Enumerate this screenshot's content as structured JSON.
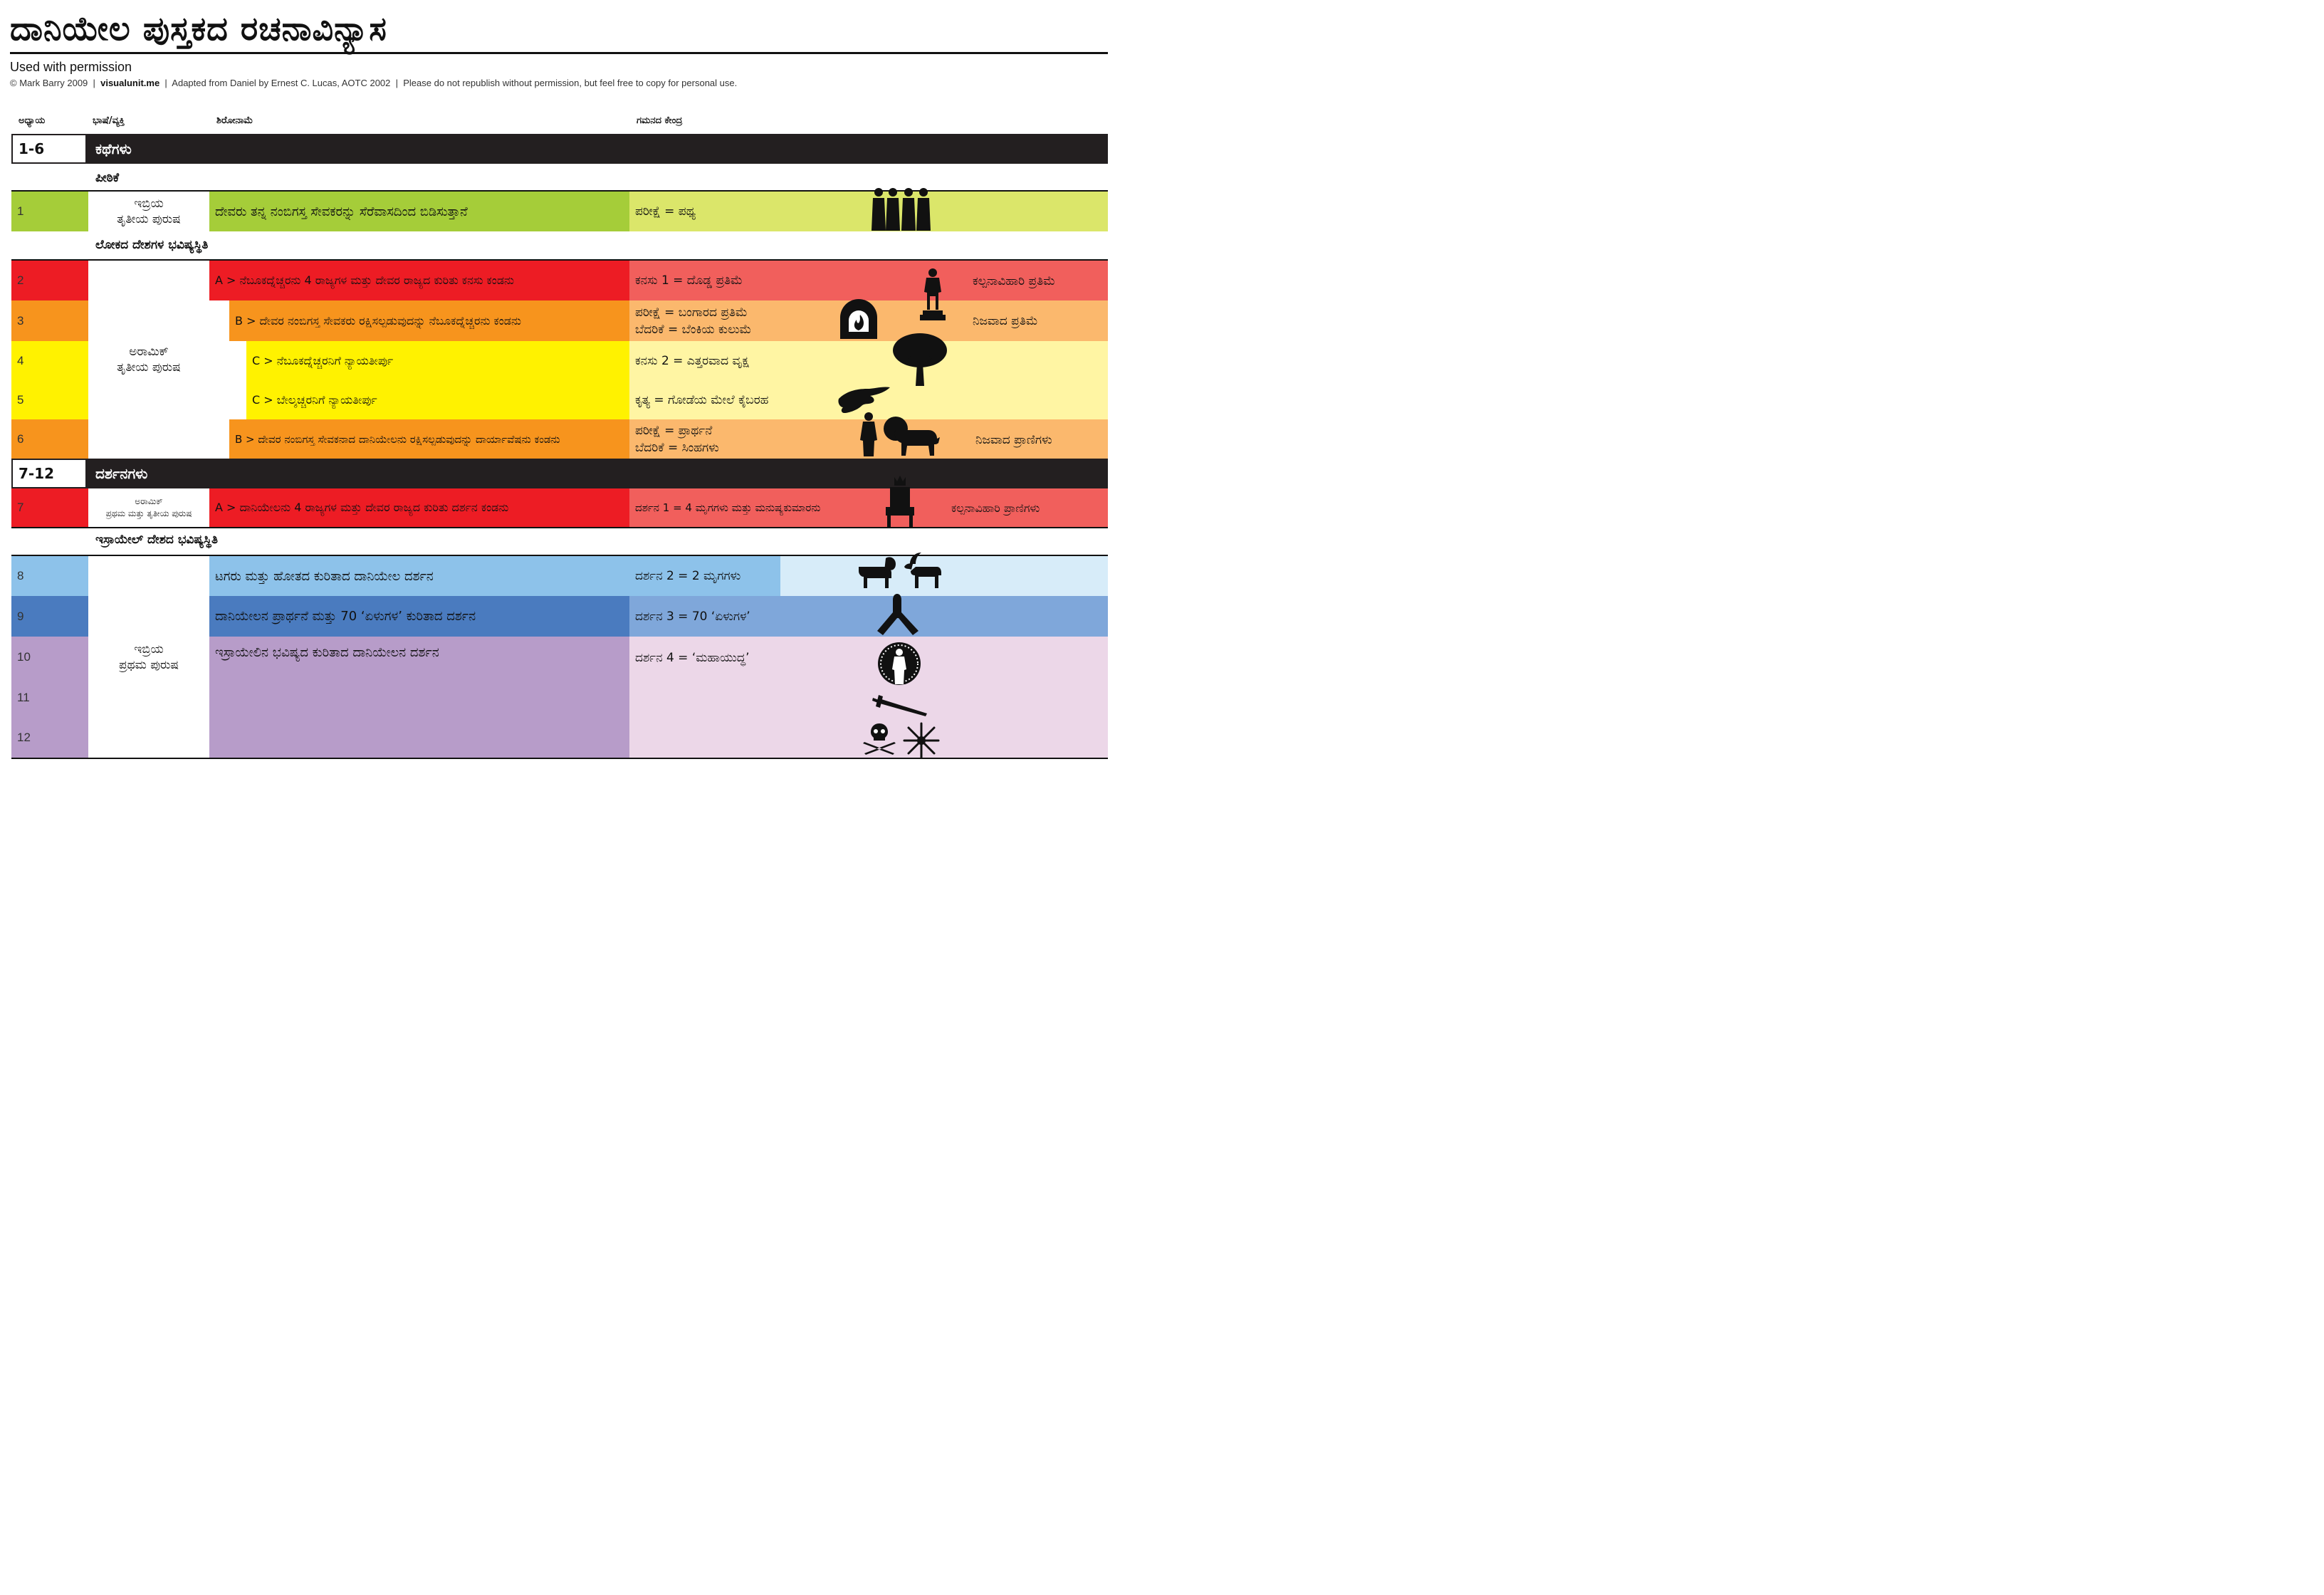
{
  "title": "ದಾನಿಯೇಲ ಪುಸ್ತಕದ ರಚನಾವಿನ್ಯಾಸ",
  "permission": "Used with permission",
  "credits": {
    "copyright": "© Mark Barry 2009",
    "site": "visualunit.me",
    "adapted": "Adapted from Daniel by Ernest C. Lucas, AOTC 2002",
    "note": "Please do not republish without permission, but feel free to copy for personal use."
  },
  "headers": {
    "chapter": "ಅಧ್ಯಾಯ",
    "language": "ಭಾಷೆ/ವ್ಯಕ್ತಿ",
    "heading": "ಶಿರೋನಾಮೆ",
    "focus": "ಗಮನದ ಕೇಂದ್ರ"
  },
  "sections": [
    {
      "range": "1-6",
      "name": "ಕಥೆಗಳು"
    },
    {
      "range": "7-12",
      "name": "ದರ್ಶನಗಳು"
    }
  ],
  "subheads": [
    "ಪೀಠಿಕೆ",
    "ಲೋಕದ ದೇಶಗಳ ಭವಿಷ್ಯಸ್ಥಿತಿ",
    "ಇಸ್ರಾಯೇಲ್ ದೇಶದ ಭವಿಷ್ಯಸ್ಥಿತಿ"
  ],
  "languages": {
    "hebrew_third": [
      "ಇಬ್ರಿಯ",
      "ತೃತೀಯ ಪುರುಷ"
    ],
    "aramaic_third": [
      "ಅರಾಮಿಕ್",
      "ತೃತೀಯ ಪುರುಷ"
    ],
    "aramaic_first_third": [
      "ಅರಾಮಿಕ್",
      "ಪ್ರಥಮ ಮತ್ತು ತೃತೀಯ ಪುರುಷ"
    ],
    "hebrew_first": [
      "ಇಬ್ರಿಯ",
      "ಪ್ರಥಮ ಪುರುಷ"
    ]
  },
  "rows": [
    {
      "ch": "1",
      "title": "ದೇವರು ತನ್ನ ನಂಬಿಗಸ್ತ ಸೇವಕರನ್ನು ಸೆರೆವಾಸದಿಂದ ಬಿಡಿಸುತ್ತಾನೆ",
      "focus": [
        "ಪರೀಕ್ಷೆ = ಪಥ್ಯ"
      ],
      "side": ""
    },
    {
      "ch": "2",
      "title": "A > ನೆಬೂಕದ್ನೆಚ್ಚರನು 4 ರಾಜ್ಯಗಳ ಮತ್ತು ದೇವರ ರಾಜ್ಯದ ಕುರಿತು ಕನಸು ಕಂಡನು",
      "focus": [
        "ಕನಸು 1 = ದೊಡ್ಡ ಪ್ರತಿಮೆ"
      ],
      "side": "ಕಲ್ಪನಾವಿಹಾರಿ ಪ್ರತಿಮೆ"
    },
    {
      "ch": "3",
      "title": "B > ದೇವರ ನಂಬಿಗಸ್ತ ಸೇವಕರು ರಕ್ಷಿಸಲ್ಪಡುವುದನ್ನು ನೆಬೂಕದ್ನೆಚ್ಚರನು ಕಂಡನು",
      "focus": [
        "ಪರೀಕ್ಷೆ = ಬಂಗಾರದ ಪ್ರತಿಮೆ",
        "ಬೆದರಿಕೆ = ಬೆಂಕಿಯ ಕುಲುಮೆ"
      ],
      "side": "ನಿಜವಾದ ಪ್ರತಿಮೆ"
    },
    {
      "ch": "4",
      "title": "C > ನೆಬೂಕದ್ನೆಚ್ಚರನಿಗೆ ನ್ಯಾಯತೀರ್ಪು",
      "focus": [
        "ಕನಸು 2 = ಎತ್ತರವಾದ ವೃಕ್ಷ"
      ],
      "side": ""
    },
    {
      "ch": "5",
      "title": "C > ಬೇಲ್ಶಚ್ಚರನಿಗೆ ನ್ಯಾಯತೀರ್ಪು",
      "focus": [
        "ಕೃತ್ಯ = ಗೋಡೆಯ ಮೇಲೆ ಕೈಬರಹ"
      ],
      "side": ""
    },
    {
      "ch": "6",
      "title": "B > ದೇವರ ನಂಬಿಗಸ್ತ ಸೇವಕನಾದ ದಾನಿಯೇಲನು ರಕ್ಷಿಸಲ್ಪಡುವುದನ್ನು ದಾರ್ಯಾವೆಷನು ಕಂಡನು",
      "focus": [
        "ಪರೀಕ್ಷೆ = ಪ್ರಾರ್ಥನೆ",
        "ಬೆದರಿಕೆ = ಸಿಂಹಗಳು"
      ],
      "side": "ನಿಜವಾದ ಪ್ರಾಣಿಗಳು"
    },
    {
      "ch": "7",
      "title": "A > ದಾನಿಯೇಲನು 4 ರಾಜ್ಯಗಳ ಮತ್ತು ದೇವರ ರಾಜ್ಯದ ಕುರಿತು ದರ್ಶನ ಕಂಡನು",
      "focus": [
        "ದರ್ಶನ 1 = 4 ಮೃಗಗಳು ಮತ್ತು ಮನುಷ್ಯಕುಮಾರನು"
      ],
      "side": "ಕಲ್ಪನಾವಿಹಾರಿ ಪ್ರಾಣಿಗಳು"
    },
    {
      "ch": "8",
      "title": "ಟಗರು ಮತ್ತು ಹೋತದ ಕುರಿತಾದ ದಾನಿಯೇಲ ದರ್ಶನ",
      "focus": [
        "ದರ್ಶನ 2 = 2 ಮೃಗಗಳು"
      ],
      "side": ""
    },
    {
      "ch": "9",
      "title": "ದಾನಿಯೇಲನ ಪ್ರಾರ್ಥನೆ ಮತ್ತು 70 ‘ಏಳುಗಳ’ ಕುರಿತಾದ ದರ್ಶನ",
      "focus": [
        "ದರ್ಶನ 3 = 70 ‘ಏಳುಗಳ’"
      ],
      "side": ""
    },
    {
      "ch": "10",
      "title": "ಇಸ್ರಾಯೇಲಿನ ಭವಿಷ್ಯದ ಕುರಿತಾದ ದಾನಿಯೇಲನ ದರ್ಶನ",
      "focus": [
        "ದರ್ಶನ 4 = ‘ಮಹಾಯುದ್ಧ’"
      ],
      "side": ""
    },
    {
      "ch": "11",
      "title": "",
      "focus": [
        ""
      ],
      "side": ""
    },
    {
      "ch": "12",
      "title": "",
      "focus": [
        ""
      ],
      "side": ""
    }
  ],
  "colors": {
    "green": "#a5cd39",
    "green_light": "#dbe66a",
    "red": "#ed1c24",
    "red_light": "#f15f5c",
    "orange": "#f7941d",
    "orange_light": "#fbb86d",
    "yellow": "#fff200",
    "yellow_light": "#fff5a3",
    "blue_light": "#8dc2ea",
    "blue_lighter": "#d7ecf9",
    "blue": "#4a7bbf",
    "blue_mid": "#7fa7da",
    "purple": "#b79cc9",
    "purple_light": "#ecd7e8",
    "black": "#231f20"
  },
  "icons": [
    "four-men-icon",
    "statue-icon",
    "furnace-icon",
    "tree-icon",
    "writing-hand-icon",
    "man-icon",
    "lion-icon",
    "throne-icon",
    "ram-icon",
    "goat-icon",
    "praying-hands-icon",
    "glowing-man-icon",
    "sword-icon",
    "skull-crossbones-icon",
    "star-burst-icon"
  ]
}
